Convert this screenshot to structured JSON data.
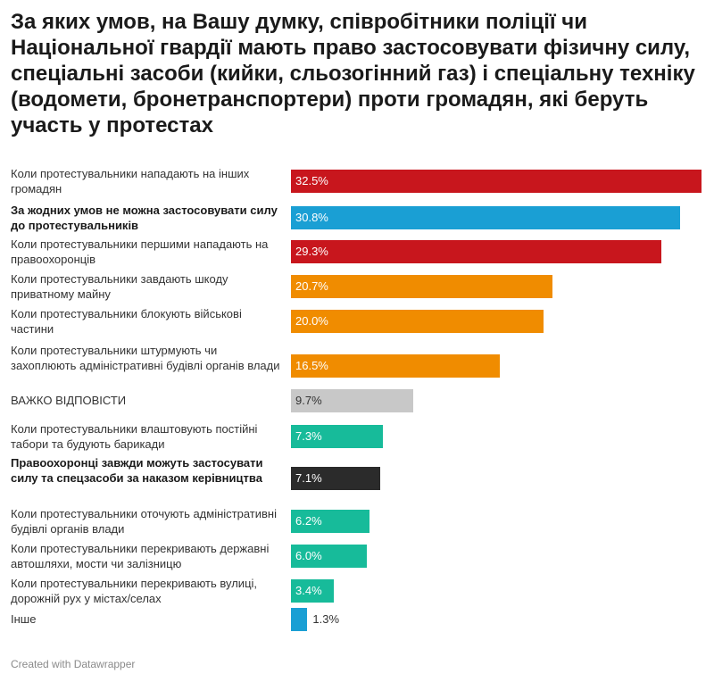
{
  "title": "За яких умов, на Вашу думку, співробітники поліції чи Національної гвардії мають право застосовувати фізичну силу, спеціальні засоби (кийки, сльозогінний газ) і спеціальну техніку (водомети, бронетранспортери) проти громадян, які беруть участь у протестах",
  "footer": "Created with Datawrapper",
  "colors": {
    "red": "#c8161d",
    "blue": "#1a9fd4",
    "orange": "#f08c00",
    "gray": "#c8c8c8",
    "teal": "#17bb9a",
    "black": "#2b2b2b"
  },
  "chart_data": {
    "type": "bar",
    "orientation": "horizontal",
    "title": "За яких умов, на Вашу думку, співробітники поліції чи Національної гвардії мають право застосовувати фізичну силу, спеціальні засоби (кийки, сльозогінний газ) і спеціальну техніку (водомети, бронетранспортери) проти громадян, які беруть участь у протестах",
    "xlim": [
      0,
      32.5
    ],
    "rows": [
      {
        "category": "Коли протестувальники нападають на інших громадян",
        "value": 32.5,
        "label": "32.5%",
        "color": "red",
        "bold": false
      },
      {
        "category": "За жодних умов не можна застосовувати силу до протестувальників",
        "value": 30.8,
        "label": "30.8%",
        "color": "blue",
        "bold": true
      },
      {
        "category": "Коли протестувальники першими нападають на правоохоронців",
        "value": 29.3,
        "label": "29.3%",
        "color": "red",
        "bold": false
      },
      {
        "category": "Коли протестувальники завдають шкоду приватному майну",
        "value": 20.7,
        "label": "20.7%",
        "color": "orange",
        "bold": false
      },
      {
        "category": "Коли протестувальники блокують військові частини",
        "value": 20.0,
        "label": "20.0%",
        "color": "orange",
        "bold": false
      },
      {
        "category": "Коли протестувальники штурмують чи захоплюють адміністративні будівлі органів влади",
        "value": 16.5,
        "label": "16.5%",
        "color": "orange",
        "bold": false
      },
      {
        "category": "ВАЖКО ВІДПОВІСТИ",
        "value": 9.7,
        "label": "9.7%",
        "color": "gray",
        "bold": false
      },
      {
        "category": "Коли протестувальники влаштовують постійні табори та будують барикади",
        "value": 7.3,
        "label": "7.3%",
        "color": "teal",
        "bold": false
      },
      {
        "category": "Правоохоронці завжди можуть застосувати силу та спецзасоби за наказом керівництва",
        "value": 7.1,
        "label": "7.1%",
        "color": "black",
        "bold": true
      },
      {
        "category": "Коли протестувальники оточують адміністративні будівлі органів влади",
        "value": 6.2,
        "label": "6.2%",
        "color": "teal",
        "bold": false
      },
      {
        "category": "Коли протестувальники перекривають державні автошляхи, мости чи залізницю",
        "value": 6.0,
        "label": "6.0%",
        "color": "teal",
        "bold": false
      },
      {
        "category": "Коли протестувальники перекривають вулиці, дорожній рух у містах/селах",
        "value": 3.4,
        "label": "3.4%",
        "color": "teal",
        "bold": false
      },
      {
        "category": "Інше",
        "value": 1.3,
        "label": "1.3%",
        "color": "blue",
        "bold": false
      }
    ]
  }
}
